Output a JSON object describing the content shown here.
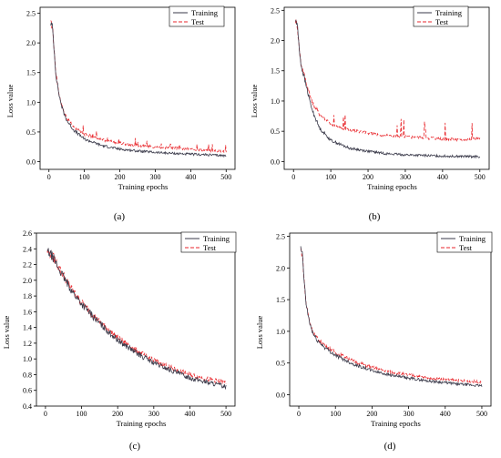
{
  "figure": {
    "panels": [
      "a",
      "b",
      "c",
      "d"
    ]
  },
  "chart_data": [
    {
      "id": "a",
      "panel_label": "(a)",
      "type": "line",
      "xlabel": "Training epochs",
      "ylabel": "Loss value",
      "xlim": [
        -25,
        525
      ],
      "ylim": [
        -0.13,
        2.6
      ],
      "xticks": [
        0,
        100,
        200,
        300,
        400,
        500
      ],
      "yticks": [
        0.0,
        0.5,
        1.0,
        1.5,
        2.0,
        2.5
      ],
      "ytick_labels": [
        "0.0",
        "0.5",
        "1.0",
        "1.5",
        "2.0",
        "2.5"
      ],
      "legend_position": "top-right",
      "series": [
        {
          "name": "Training",
          "style": "solid",
          "color": "#3a3a4a",
          "x": [
            5,
            10,
            15,
            20,
            30,
            40,
            50,
            70,
            100,
            150,
            200,
            250,
            300,
            350,
            400,
            450,
            500
          ],
          "y": [
            2.33,
            2.27,
            1.85,
            1.45,
            1.08,
            0.85,
            0.7,
            0.53,
            0.38,
            0.27,
            0.21,
            0.18,
            0.155,
            0.14,
            0.125,
            0.115,
            0.1
          ]
        },
        {
          "name": "Test",
          "style": "dashed",
          "color": "#e8262b",
          "x": [
            5,
            10,
            15,
            20,
            30,
            40,
            50,
            70,
            100,
            150,
            200,
            250,
            300,
            350,
            400,
            450,
            500
          ],
          "y": [
            2.33,
            2.27,
            1.86,
            1.47,
            1.1,
            0.88,
            0.74,
            0.58,
            0.46,
            0.37,
            0.31,
            0.27,
            0.25,
            0.23,
            0.21,
            0.19,
            0.17
          ]
        }
      ]
    },
    {
      "id": "b",
      "panel_label": "(b)",
      "type": "line",
      "xlabel": "Training epochs",
      "ylabel": "Loss value",
      "xlim": [
        -25,
        525
      ],
      "ylim": [
        -0.13,
        2.55
      ],
      "xticks": [
        0,
        100,
        200,
        300,
        400,
        500
      ],
      "yticks": [
        0.0,
        0.5,
        1.0,
        1.5,
        2.0,
        2.5
      ],
      "ytick_labels": [
        "0.0",
        "0.5",
        "1.0",
        "1.5",
        "2.0",
        "2.5"
      ],
      "legend_position": "top-right",
      "series": [
        {
          "name": "Training",
          "style": "solid",
          "color": "#3a3a4a",
          "x": [
            5,
            10,
            15,
            20,
            30,
            40,
            50,
            70,
            100,
            150,
            200,
            250,
            300,
            350,
            400,
            450,
            500
          ],
          "y": [
            2.33,
            2.27,
            1.9,
            1.6,
            1.35,
            1.1,
            0.85,
            0.55,
            0.35,
            0.22,
            0.17,
            0.13,
            0.11,
            0.1,
            0.09,
            0.085,
            0.08
          ]
        },
        {
          "name": "Test",
          "style": "dashed",
          "color": "#e8262b",
          "x": [
            5,
            10,
            15,
            20,
            30,
            40,
            50,
            70,
            100,
            150,
            200,
            250,
            300,
            350,
            400,
            450,
            500
          ],
          "y": [
            2.33,
            2.27,
            1.9,
            1.62,
            1.4,
            1.18,
            0.98,
            0.78,
            0.62,
            0.52,
            0.47,
            0.43,
            0.41,
            0.39,
            0.37,
            0.36,
            0.38
          ]
        }
      ]
    },
    {
      "id": "c",
      "panel_label": "(c)",
      "type": "line",
      "xlabel": "Training epochs",
      "ylabel": "Loss value",
      "xlim": [
        -25,
        525
      ],
      "ylim": [
        0.4,
        2.6
      ],
      "xticks": [
        0,
        100,
        200,
        300,
        400,
        500
      ],
      "yticks": [
        0.4,
        0.6,
        0.8,
        1.0,
        1.2,
        1.4,
        1.6,
        1.8,
        2.0,
        2.2,
        2.4,
        2.6
      ],
      "ytick_labels": [
        "0.4",
        "0.6",
        "0.8",
        "1.0",
        "1.2",
        "1.4",
        "1.6",
        "1.8",
        "2.0",
        "2.2",
        "2.4",
        "2.6"
      ],
      "legend_position": "top-right",
      "series": [
        {
          "name": "Training",
          "style": "solid",
          "color": "#3a3a4a",
          "x": [
            5,
            20,
            40,
            60,
            80,
            100,
            150,
            200,
            250,
            300,
            350,
            400,
            450,
            500
          ],
          "y": [
            2.37,
            2.3,
            2.12,
            1.96,
            1.82,
            1.7,
            1.45,
            1.24,
            1.08,
            0.95,
            0.85,
            0.76,
            0.7,
            0.65
          ]
        },
        {
          "name": "Test",
          "style": "dashed",
          "color": "#e8262b",
          "x": [
            5,
            20,
            40,
            60,
            80,
            100,
            150,
            200,
            250,
            300,
            350,
            400,
            450,
            500
          ],
          "y": [
            2.37,
            2.31,
            2.14,
            1.98,
            1.84,
            1.72,
            1.47,
            1.27,
            1.11,
            0.98,
            0.88,
            0.8,
            0.74,
            0.7
          ]
        }
      ]
    },
    {
      "id": "d",
      "panel_label": "(d)",
      "type": "line",
      "xlabel": "Training epochs",
      "ylabel": "Loss value",
      "xlim": [
        -25,
        525
      ],
      "ylim": [
        -0.18,
        2.55
      ],
      "xticks": [
        0,
        100,
        200,
        300,
        400,
        500
      ],
      "yticks": [
        0.0,
        0.5,
        1.0,
        1.5,
        2.0,
        2.5
      ],
      "ytick_labels": [
        "0.0",
        "0.5",
        "1.0",
        "1.5",
        "2.0",
        "2.5"
      ],
      "legend_position": "top-right",
      "series": [
        {
          "name": "Training",
          "style": "solid",
          "color": "#3a3a4a",
          "x": [
            5,
            10,
            15,
            20,
            30,
            40,
            50,
            70,
            100,
            150,
            200,
            250,
            300,
            350,
            400,
            450,
            500
          ],
          "y": [
            2.3,
            2.2,
            1.75,
            1.42,
            1.12,
            0.95,
            0.86,
            0.75,
            0.62,
            0.48,
            0.38,
            0.31,
            0.26,
            0.22,
            0.19,
            0.16,
            0.14
          ]
        },
        {
          "name": "Test",
          "style": "dashed",
          "color": "#e8262b",
          "x": [
            5,
            10,
            15,
            20,
            30,
            40,
            50,
            70,
            100,
            150,
            200,
            250,
            300,
            350,
            400,
            450,
            500
          ],
          "y": [
            2.3,
            2.2,
            1.76,
            1.43,
            1.14,
            0.98,
            0.89,
            0.79,
            0.67,
            0.53,
            0.43,
            0.36,
            0.31,
            0.27,
            0.24,
            0.22,
            0.2
          ]
        }
      ]
    }
  ]
}
